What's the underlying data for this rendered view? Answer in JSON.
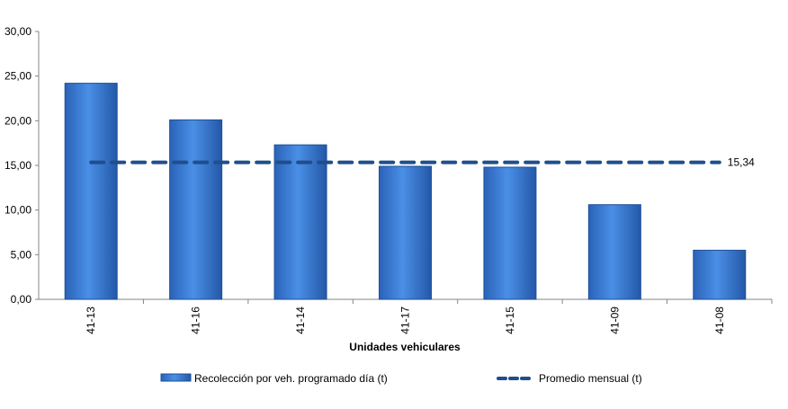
{
  "chart_data": {
    "type": "bar",
    "categories": [
      "41-13",
      "41-16",
      "41-14",
      "41-17",
      "41-15",
      "41-09",
      "41-08"
    ],
    "series": [
      {
        "name": "Recolección por veh. programado día (t)",
        "type": "bar",
        "values": [
          24.2,
          20.1,
          17.3,
          14.9,
          14.8,
          10.6,
          5.5
        ],
        "color": "#2e6fcf"
      },
      {
        "name": "Promedio mensual (t)",
        "type": "line",
        "style": "dashed",
        "value": 15.34,
        "label": "15,34",
        "color": "#1f4e8c"
      }
    ],
    "yticks": [
      "0,00",
      "5,00",
      "10,00",
      "15,00",
      "20,00",
      "25,00",
      "30,00"
    ],
    "ylim": [
      0,
      30
    ],
    "title": "",
    "xlabel": "Unidades vehiculares",
    "ylabel": "",
    "grid": false,
    "legend_position": "bottom"
  }
}
